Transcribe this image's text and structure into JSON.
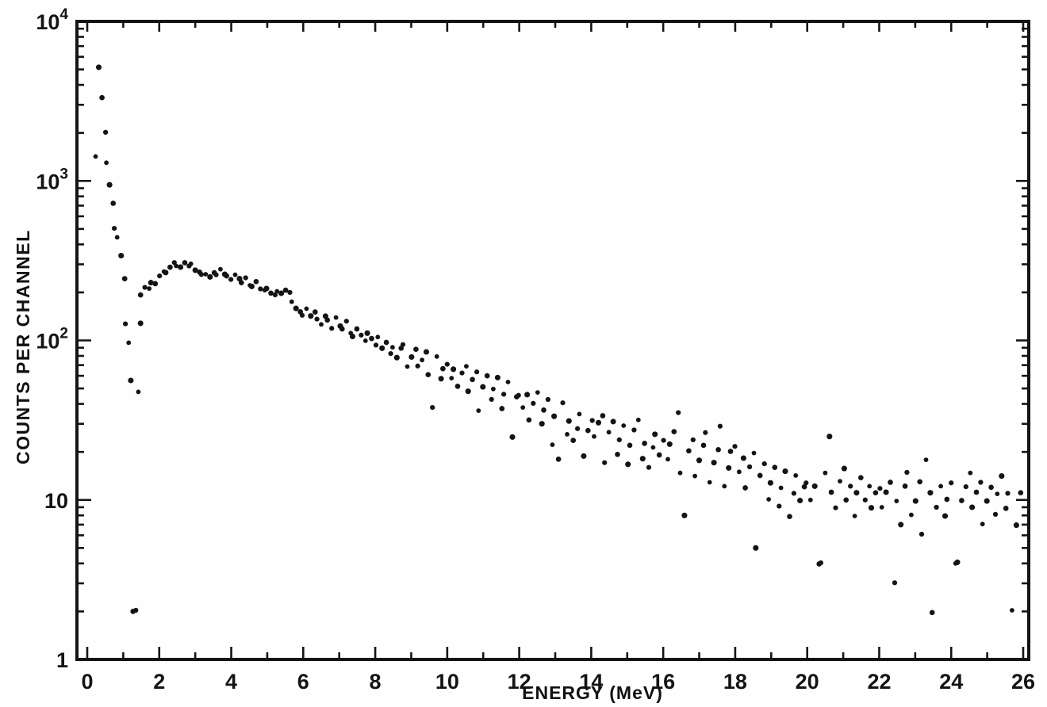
{
  "figure": {
    "background": "#fefefe",
    "ink_color": "#141414",
    "description": "Scanned scatter plot of a pulse-height spectrum: counts per channel versus energy, log vertical scale"
  },
  "chart_data": {
    "type": "scatter",
    "title": "",
    "xlabel": "ENERGY (MeV)",
    "ylabel": "COUNTS PER CHANNEL",
    "xlim": [
      0,
      26
    ],
    "ylim": [
      1,
      10000
    ],
    "yscale": "log",
    "grid": false,
    "legend": "none",
    "marker": "filled-dot",
    "x_major_ticks": [
      0,
      2,
      4,
      6,
      8,
      10,
      12,
      14,
      16,
      18,
      20,
      22,
      24,
      26
    ],
    "x_minor_ticks": [
      1,
      3,
      5,
      7,
      9,
      11,
      13,
      15,
      17,
      19,
      21,
      23,
      25
    ],
    "x_tick_labels": [
      "0",
      "2",
      "4",
      "6",
      "8",
      "10",
      "12",
      "14",
      "16",
      "18",
      "20",
      "22",
      "24",
      "26"
    ],
    "y_major_ticks": [
      1,
      10,
      100,
      1000,
      10000
    ],
    "y_tick_labels": [
      {
        "value": 10000,
        "base": "10",
        "exp": "4"
      },
      {
        "value": 1000,
        "base": "10",
        "exp": "3"
      },
      {
        "value": 100,
        "base": "10",
        "exp": "2"
      },
      {
        "value": 10,
        "base": "10",
        "exp": ""
      },
      {
        "value": 1,
        "base": "1",
        "exp": ""
      }
    ],
    "points": [
      [
        0.26,
        1400
      ],
      [
        0.33,
        5200
      ],
      [
        0.4,
        3300
      ],
      [
        0.48,
        2050
      ],
      [
        0.55,
        1300
      ],
      [
        0.62,
        930
      ],
      [
        0.7,
        730
      ],
      [
        0.78,
        500
      ],
      [
        0.84,
        450
      ],
      [
        0.93,
        340
      ],
      [
        1.01,
        240
      ],
      [
        1.08,
        128
      ],
      [
        1.15,
        96
      ],
      [
        1.19,
        57
      ],
      [
        1.3,
        2
      ],
      [
        1.36,
        2
      ],
      [
        1.41,
        48
      ],
      [
        1.45,
        127
      ],
      [
        1.5,
        196
      ],
      [
        1.6,
        215
      ],
      [
        1.7,
        208
      ],
      [
        1.8,
        232
      ],
      [
        1.9,
        225
      ],
      [
        2.0,
        258
      ],
      [
        2.1,
        270
      ],
      [
        2.2,
        262
      ],
      [
        2.3,
        290
      ],
      [
        2.4,
        305
      ],
      [
        2.5,
        298
      ],
      [
        2.6,
        288
      ],
      [
        2.7,
        302
      ],
      [
        2.8,
        295
      ],
      [
        2.9,
        300
      ],
      [
        3.0,
        280
      ],
      [
        3.1,
        268
      ],
      [
        3.2,
        255
      ],
      [
        3.3,
        262
      ],
      [
        3.4,
        248
      ],
      [
        3.5,
        270
      ],
      [
        3.6,
        258
      ],
      [
        3.7,
        275
      ],
      [
        3.8,
        262
      ],
      [
        3.9,
        252
      ],
      [
        4.0,
        245
      ],
      [
        4.1,
        258
      ],
      [
        4.2,
        240
      ],
      [
        4.3,
        232
      ],
      [
        4.4,
        245
      ],
      [
        4.5,
        225
      ],
      [
        4.6,
        218
      ],
      [
        4.7,
        230
      ],
      [
        4.8,
        212
      ],
      [
        4.9,
        205
      ],
      [
        5.0,
        215
      ],
      [
        5.1,
        198
      ],
      [
        5.2,
        190
      ],
      [
        5.3,
        205
      ],
      [
        5.4,
        196
      ],
      [
        5.5,
        210
      ],
      [
        5.6,
        200
      ],
      [
        5.7,
        172
      ],
      [
        5.8,
        160
      ],
      [
        5.9,
        150
      ],
      [
        6.0,
        146
      ],
      [
        6.1,
        158
      ],
      [
        6.2,
        140
      ],
      [
        6.3,
        152
      ],
      [
        6.4,
        135
      ],
      [
        6.5,
        128
      ],
      [
        6.6,
        142
      ],
      [
        6.7,
        132
      ],
      [
        6.8,
        120
      ],
      [
        6.9,
        138
      ],
      [
        7.0,
        125
      ],
      [
        7.1,
        118
      ],
      [
        7.2,
        130
      ],
      [
        7.3,
        112
      ],
      [
        7.4,
        105
      ],
      [
        7.5,
        120
      ],
      [
        7.6,
        108
      ],
      [
        7.7,
        98
      ],
      [
        7.8,
        112
      ],
      [
        7.9,
        102
      ],
      [
        8.0,
        95
      ],
      [
        8.1,
        105
      ],
      [
        8.2,
        88
      ],
      [
        8.3,
        98
      ],
      [
        8.4,
        82
      ],
      [
        8.5,
        92
      ],
      [
        8.6,
        78
      ],
      [
        8.7,
        88
      ],
      [
        8.8,
        95
      ],
      [
        8.9,
        68
      ],
      [
        9.0,
        80
      ],
      [
        9.1,
        88
      ],
      [
        9.2,
        68
      ],
      [
        9.3,
        76
      ],
      [
        9.4,
        84
      ],
      [
        9.5,
        62
      ],
      [
        9.6,
        38
      ],
      [
        9.7,
        78
      ],
      [
        9.8,
        58
      ],
      [
        9.9,
        66
      ],
      [
        10.0,
        72
      ],
      [
        10.1,
        58
      ],
      [
        10.2,
        65
      ],
      [
        10.3,
        52
      ],
      [
        10.4,
        62
      ],
      [
        10.5,
        70
      ],
      [
        10.6,
        48
      ],
      [
        10.7,
        56
      ],
      [
        10.8,
        64
      ],
      [
        10.9,
        36
      ],
      [
        11.0,
        52
      ],
      [
        11.1,
        60
      ],
      [
        11.2,
        42
      ],
      [
        11.3,
        50
      ],
      [
        11.4,
        58
      ],
      [
        11.5,
        38
      ],
      [
        11.6,
        46
      ],
      [
        11.7,
        54
      ],
      [
        11.8,
        25
      ],
      [
        11.9,
        44
      ],
      [
        12.0,
        46
      ],
      [
        12.1,
        38
      ],
      [
        12.2,
        45
      ],
      [
        12.3,
        32
      ],
      [
        12.4,
        40
      ],
      [
        12.5,
        48
      ],
      [
        12.6,
        30
      ],
      [
        12.7,
        36
      ],
      [
        12.8,
        43
      ],
      [
        12.9,
        22
      ],
      [
        13.0,
        34
      ],
      [
        13.1,
        18
      ],
      [
        13.2,
        40
      ],
      [
        13.3,
        26
      ],
      [
        13.4,
        31
      ],
      [
        13.5,
        24
      ],
      [
        13.6,
        28
      ],
      [
        13.7,
        34
      ],
      [
        13.8,
        19
      ],
      [
        13.9,
        27
      ],
      [
        14.0,
        32
      ],
      [
        14.1,
        25
      ],
      [
        14.2,
        30
      ],
      [
        14.3,
        34
      ],
      [
        14.4,
        17
      ],
      [
        14.5,
        27
      ],
      [
        14.6,
        31
      ],
      [
        14.7,
        19
      ],
      [
        14.8,
        24
      ],
      [
        14.9,
        29
      ],
      [
        15.0,
        17
      ],
      [
        15.1,
        22
      ],
      [
        15.2,
        27
      ],
      [
        15.3,
        32
      ],
      [
        15.4,
        18
      ],
      [
        15.5,
        23
      ],
      [
        15.6,
        16
      ],
      [
        15.7,
        21
      ],
      [
        15.8,
        26
      ],
      [
        15.9,
        19
      ],
      [
        16.0,
        24
      ],
      [
        16.1,
        18
      ],
      [
        16.2,
        22
      ],
      [
        16.3,
        27
      ],
      [
        16.4,
        35
      ],
      [
        16.5,
        15
      ],
      [
        16.6,
        8
      ],
      [
        16.7,
        20
      ],
      [
        16.8,
        24
      ],
      [
        16.9,
        14
      ],
      [
        17.0,
        18
      ],
      [
        17.1,
        22
      ],
      [
        17.2,
        26
      ],
      [
        17.3,
        13
      ],
      [
        17.4,
        17
      ],
      [
        17.5,
        21
      ],
      [
        17.6,
        29
      ],
      [
        17.7,
        12
      ],
      [
        17.8,
        16
      ],
      [
        17.9,
        20
      ],
      [
        18.0,
        22
      ],
      [
        18.1,
        15
      ],
      [
        18.2,
        18
      ],
      [
        18.3,
        12
      ],
      [
        18.4,
        16
      ],
      [
        18.5,
        20
      ],
      [
        18.6,
        5
      ],
      [
        18.7,
        14
      ],
      [
        18.8,
        17
      ],
      [
        18.9,
        10
      ],
      [
        19.0,
        13
      ],
      [
        19.1,
        16
      ],
      [
        19.2,
        9
      ],
      [
        19.3,
        12
      ],
      [
        19.4,
        15
      ],
      [
        19.5,
        8
      ],
      [
        19.6,
        11
      ],
      [
        19.7,
        14
      ],
      [
        19.8,
        10
      ],
      [
        19.9,
        12
      ],
      [
        20.0,
        13
      ],
      [
        20.1,
        10
      ],
      [
        20.2,
        12
      ],
      [
        20.3,
        4
      ],
      [
        20.4,
        4
      ],
      [
        20.5,
        15
      ],
      [
        20.6,
        25
      ],
      [
        20.7,
        11
      ],
      [
        20.8,
        9
      ],
      [
        20.9,
        13
      ],
      [
        21.0,
        16
      ],
      [
        21.1,
        10
      ],
      [
        21.2,
        12
      ],
      [
        21.3,
        8
      ],
      [
        21.4,
        11
      ],
      [
        21.5,
        14
      ],
      [
        21.6,
        10
      ],
      [
        21.7,
        12
      ],
      [
        21.8,
        9
      ],
      [
        21.9,
        11
      ],
      [
        22.0,
        12
      ],
      [
        22.1,
        9
      ],
      [
        22.2,
        11
      ],
      [
        22.3,
        13
      ],
      [
        22.4,
        3
      ],
      [
        22.5,
        10
      ],
      [
        22.6,
        7
      ],
      [
        22.7,
        12
      ],
      [
        22.8,
        15
      ],
      [
        22.9,
        8
      ],
      [
        23.0,
        10
      ],
      [
        23.1,
        13
      ],
      [
        23.2,
        6
      ],
      [
        23.3,
        18
      ],
      [
        23.4,
        11
      ],
      [
        23.5,
        2
      ],
      [
        23.6,
        9
      ],
      [
        23.7,
        12
      ],
      [
        23.8,
        8
      ],
      [
        23.9,
        10
      ],
      [
        24.0,
        13
      ],
      [
        24.1,
        4
      ],
      [
        24.2,
        4
      ],
      [
        24.3,
        10
      ],
      [
        24.4,
        12
      ],
      [
        24.5,
        15
      ],
      [
        24.6,
        9
      ],
      [
        24.7,
        11
      ],
      [
        24.8,
        13
      ],
      [
        24.9,
        7
      ],
      [
        25.0,
        10
      ],
      [
        25.1,
        12
      ],
      [
        25.2,
        8
      ],
      [
        25.3,
        11
      ],
      [
        25.4,
        14
      ],
      [
        25.5,
        9
      ],
      [
        25.6,
        11
      ],
      [
        25.7,
        2
      ],
      [
        25.8,
        7
      ],
      [
        25.9,
        11
      ]
    ]
  }
}
